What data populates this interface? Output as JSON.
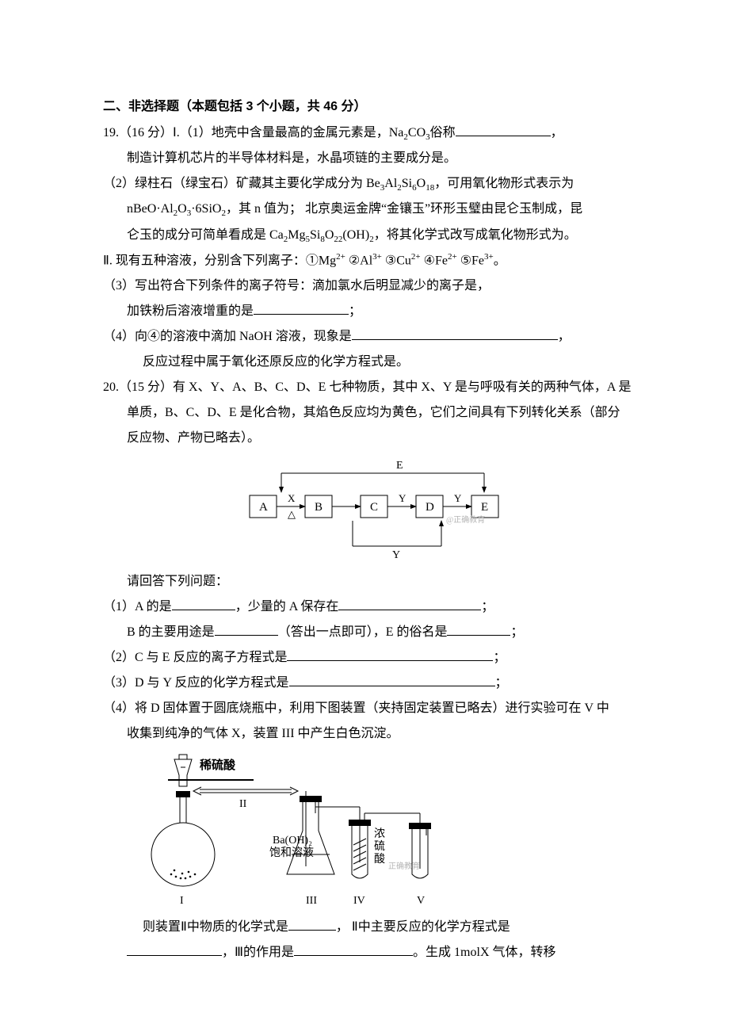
{
  "section": {
    "title": "二、非选择题（本题包括 3 个小题，共 46 分）"
  },
  "q19": {
    "head": "19.（16 分）Ⅰ.（1）地壳中含量最高的金属元素是，Na",
    "na2co3_sub": "2",
    "co3_c": "CO",
    "co3_sub": "3",
    "head_tail": "俗称",
    "head_comma": "，",
    "line2": "制造计算机芯片的半导体材料是，水晶项链的主要成分是。",
    "p2_a": "（2）绿柱石（绿宝石）矿藏其主要化学成分为 Be",
    "be3_sub": "3",
    "al": "Al",
    "al2_sub": "2",
    "si": "Si",
    "si6_sub": "6",
    "o": "O",
    "o18_sub": "18",
    "p2_b": "，可用氧化物形式表示为",
    "p2_line2a": "nBeO·Al",
    "al2o3_2": "2",
    "o3_o": "O",
    "o3_3": "3",
    "dot": "·6SiO",
    "sio2_2": "2",
    "p2_line2b": "，其 n 值为； 北京奥运金牌“金镶玉”环形玉璧由昆仑玉制成，昆",
    "p2_line3a": "仑玉的成分可简单看成是 Ca",
    "ca2_sub": "2",
    "mg": "Mg",
    "mg5_sub": "5",
    "si8": "Si",
    "si8_sub": "8",
    "o22": "O",
    "o22_sub": "22",
    "oh": "(OH)",
    "oh2_sub": "2",
    "p2_line3b": "，将其化学式改写成氧化物形式为。",
    "partII_a": "Ⅱ. 现有五种溶液，分别含下列离子：①Mg",
    "sup2plus": "2+",
    "sp2": "  ②Al",
    "sup3plus": "3+",
    "sp3": "  ③Cu",
    "sp4": "  ④Fe",
    "sp5": "  ⑤Fe",
    "period": "。",
    "p3_a": "（3）写出符合下列条件的离子符号：滴加氯水后明显减少的离子是，",
    "p3_b": "加铁粉后溶液增重的是",
    "p3_semi": "；",
    "p4_a": "（4）向④的溶液中滴加 NaOH 溶液，现象是",
    "p4_comma": "，",
    "p4_b": "反应过程中属于氧化还原反应的化学方程式是。"
  },
  "q20": {
    "head": "20.（15 分）有 X、Y、A、B、C、D、E 七种物质，其中 X、Y 是与呼吸有关的两种气体，A 是",
    "line2": "单质，B、C、D、E 是化合物，其焰色反应均为黄色，它们之间具有下列转化关系（部分",
    "line3": "反应物、产物已略去）。",
    "diagram": {
      "nodes": [
        "A",
        "B",
        "C",
        "D",
        "E"
      ],
      "arrows": {
        "AB_top": "X",
        "AB_bot": "△",
        "CD_top": "Y",
        "DE_top": "Y",
        "E_top": "E",
        "bottom_label": "Y"
      },
      "node_fill": "#ffffff",
      "node_stroke": "#000000",
      "watermark": "@正确教育",
      "wm_color": "#b5b5b5"
    },
    "ask": "请回答下列问题：",
    "p1_a": "（1）A 的是",
    "p1_b": "，少量的 A 保存在",
    "p1_semi": "；",
    "p1_c": "B 的主要用途是",
    "p1_d": "（答出一点即可），E 的俗名是",
    "p2": "（2）C 与 E 反应的离子方程式是",
    "p3": "（3）D 与 Y 反应的化学方程式是",
    "p4a": "（4）将 D 固体置于圆底烧瓶中，利用下图装置（夹持固定装置已略去）进行实验可在 V 中",
    "p4b": "收集到纯净的气体 X，装置 III 中产生白色沉淀。",
    "apparatus": {
      "labels": {
        "dilute_acid": "稀硫酸",
        "baoh2": "Ba(OH)₂",
        "baoh2_sat": "饱和溶液",
        "conc_acid_a": "浓",
        "conc_acid_b": "硫",
        "conc_acid_c": "酸",
        "I": "I",
        "II": "II",
        "III": "III",
        "IV": "IV",
        "V": "V",
        "wm": "正确教育"
      },
      "stroke": "#000000",
      "wm_color": "#b5b5b5"
    },
    "tail_a": "则装置Ⅱ中物质的化学式是",
    "tail_b": "， Ⅱ中主要反应的化学方程式是",
    "tail_c": "，Ⅲ的作用是",
    "tail_d": "。生成 1molX 气体，转移"
  }
}
